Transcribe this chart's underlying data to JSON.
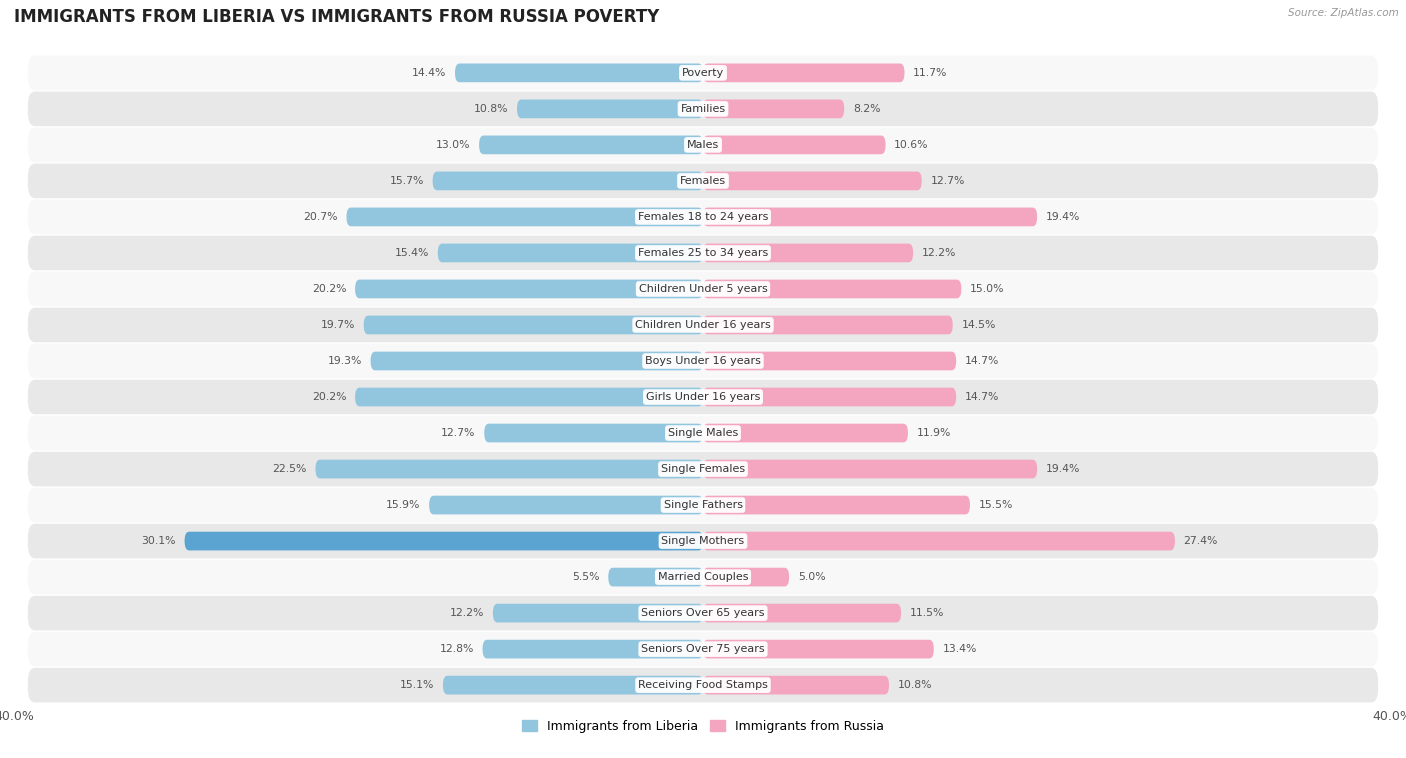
{
  "title": "IMMIGRANTS FROM LIBERIA VS IMMIGRANTS FROM RUSSIA POVERTY",
  "source": "Source: ZipAtlas.com",
  "categories": [
    "Poverty",
    "Families",
    "Males",
    "Females",
    "Females 18 to 24 years",
    "Females 25 to 34 years",
    "Children Under 5 years",
    "Children Under 16 years",
    "Boys Under 16 years",
    "Girls Under 16 years",
    "Single Males",
    "Single Females",
    "Single Fathers",
    "Single Mothers",
    "Married Couples",
    "Seniors Over 65 years",
    "Seniors Over 75 years",
    "Receiving Food Stamps"
  ],
  "liberia_values": [
    14.4,
    10.8,
    13.0,
    15.7,
    20.7,
    15.4,
    20.2,
    19.7,
    19.3,
    20.2,
    12.7,
    22.5,
    15.9,
    30.1,
    5.5,
    12.2,
    12.8,
    15.1
  ],
  "russia_values": [
    11.7,
    8.2,
    10.6,
    12.7,
    19.4,
    12.2,
    15.0,
    14.5,
    14.7,
    14.7,
    11.9,
    19.4,
    15.5,
    27.4,
    5.0,
    11.5,
    13.4,
    10.8
  ],
  "liberia_color": "#92c5de",
  "russia_color": "#f4a6c0",
  "liberia_highlight_color": "#5ba3d0",
  "russia_highlight_color": "#f4a6c0",
  "highlight_rows": [
    13
  ],
  "xlim": 40.0,
  "bar_height": 0.52,
  "background_color": "#f0f0f0",
  "row_bg_light": "#f8f8f8",
  "row_bg_dark": "#e8e8e8",
  "label_fontsize": 8.0,
  "value_fontsize": 7.8,
  "title_fontsize": 12,
  "legend_fontsize": 9
}
